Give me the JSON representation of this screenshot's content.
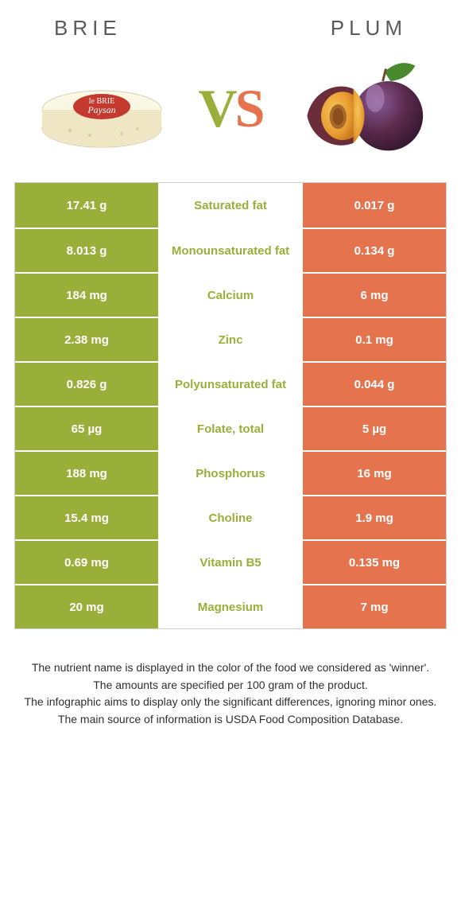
{
  "header": {
    "left": "Brie",
    "right": "Plum"
  },
  "vs": {
    "v": "V",
    "s": "S"
  },
  "colors": {
    "left": "#9aae3a",
    "right": "#e5734e",
    "mid_bg": "#ffffff",
    "border": "#d0d0d0",
    "text": "#ffffff"
  },
  "icons": {
    "left": "brie-cheese",
    "right": "plum-fruit"
  },
  "rows": [
    {
      "left": "17.41 g",
      "label": "Saturated fat",
      "right": "0.017 g",
      "winner": "left"
    },
    {
      "left": "8.013 g",
      "label": "Monounsaturated fat",
      "right": "0.134 g",
      "winner": "left"
    },
    {
      "left": "184 mg",
      "label": "Calcium",
      "right": "6 mg",
      "winner": "left"
    },
    {
      "left": "2.38 mg",
      "label": "Zinc",
      "right": "0.1 mg",
      "winner": "left"
    },
    {
      "left": "0.826 g",
      "label": "Polyunsaturated fat",
      "right": "0.044 g",
      "winner": "left"
    },
    {
      "left": "65 µg",
      "label": "Folate, total",
      "right": "5 µg",
      "winner": "left"
    },
    {
      "left": "188 mg",
      "label": "Phosphorus",
      "right": "16 mg",
      "winner": "left"
    },
    {
      "left": "15.4 mg",
      "label": "Choline",
      "right": "1.9 mg",
      "winner": "left"
    },
    {
      "left": "0.69 mg",
      "label": "Vitamin B5",
      "right": "0.135 mg",
      "winner": "left"
    },
    {
      "left": "20 mg",
      "label": "Magnesium",
      "right": "7 mg",
      "winner": "left"
    }
  ],
  "footer": {
    "l1": "The nutrient name is displayed in the color of the food we considered as 'winner'.",
    "l2": "The amounts are specified per 100 gram of the product.",
    "l3": "The infographic aims to display only the significant differences, ignoring minor ones.",
    "l4": "The main source of information is USDA Food Composition Database."
  }
}
